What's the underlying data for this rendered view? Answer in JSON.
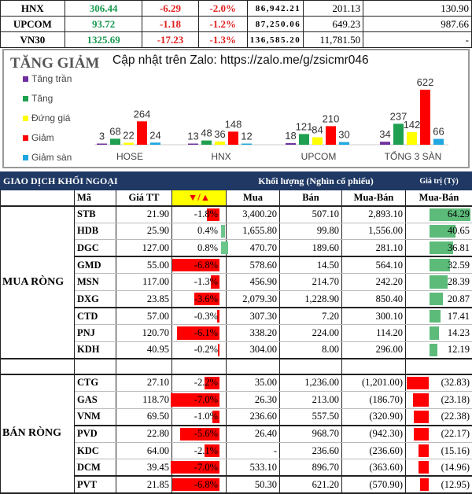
{
  "indices": [
    {
      "name": "HNX",
      "value": "306.44",
      "change": "-6.29",
      "pct": "-2.0%",
      "volume": "86,942.21",
      "col6": "201.13",
      "col7": "130.90"
    },
    {
      "name": "UPCOM",
      "value": "93.72",
      "change": "-1.18",
      "pct": "-1.2%",
      "volume": "87,250.06",
      "col6": "649.23",
      "col7": "987.66"
    },
    {
      "name": "VN30",
      "value": "1325.69",
      "change": "-17.23",
      "pct": "-1.3%",
      "volume": "136,585.20",
      "col6": "11,781.50",
      "col7": "-"
    }
  ],
  "chart_data": {
    "type": "bar",
    "title": "TĂNG GIẢM",
    "subtitle": "Cập nhật trên Zalo: https://zalo.me/g/zsicmr046",
    "categories": [
      "HOSE",
      "HNX",
      "UPCOM",
      "TỔNG 3 SÀN"
    ],
    "series": [
      {
        "name": "Tăng trần",
        "color": "#7030a0",
        "values": [
          3,
          13,
          18,
          34
        ]
      },
      {
        "name": "Tăng",
        "color": "#1fa050",
        "values": [
          68,
          48,
          121,
          237
        ]
      },
      {
        "name": "Đứng giá",
        "color": "#ffff00",
        "values": [
          22,
          36,
          84,
          142
        ]
      },
      {
        "name": "Giảm",
        "color": "#ff0000",
        "values": [
          264,
          148,
          210,
          622
        ]
      },
      {
        "name": "Giảm sàn",
        "color": "#1ea7e0",
        "values": [
          24,
          12,
          30,
          66
        ]
      }
    ],
    "legend": "left",
    "grid": false
  },
  "foreign": {
    "title": "GIAO DỊCH KHỐI NGOẠI",
    "volume_header": "Khối lượng (Nghìn cổ phiếu)",
    "value_header": "Giá trị (Tỷ)",
    "columns": [
      "Mã",
      "Giá TT",
      "▼/▲",
      "Mua",
      "Bán",
      "Mua-Bán",
      "Mua-Bán"
    ],
    "buy_label": "MUA RÒNG",
    "sell_label": "BÁN RÒNG",
    "buy": [
      [
        "STB",
        "21.90",
        "-1.8%",
        "3,400.20",
        "507.10",
        "2,893.10",
        "64.29"
      ],
      [
        "HDB",
        "25.90",
        "0.4%",
        "1,655.80",
        "99.80",
        "1,556.00",
        "40.65"
      ],
      [
        "DGC",
        "127.00",
        "0.8%",
        "470.70",
        "189.60",
        "281.10",
        "36.81"
      ],
      [
        "GMD",
        "55.00",
        "-6.8%",
        "578.60",
        "14.50",
        "564.10",
        "32.59"
      ],
      [
        "MSN",
        "117.00",
        "-1.3%",
        "456.90",
        "214.70",
        "242.20",
        "28.39"
      ],
      [
        "DXG",
        "23.85",
        "-3.6%",
        "2,079.30",
        "1,228.90",
        "850.40",
        "20.87"
      ],
      [
        "CTD",
        "57.00",
        "-0.3%",
        "307.30",
        "7.20",
        "300.10",
        "17.41"
      ],
      [
        "PNJ",
        "120.70",
        "-6.1%",
        "338.20",
        "224.00",
        "114.20",
        "14.23"
      ],
      [
        "KDH",
        "40.95",
        "-0.2%",
        "304.00",
        "8.00",
        "296.00",
        "12.19"
      ]
    ],
    "sell": [
      [
        "CTG",
        "27.10",
        "-2.2%",
        "35.00",
        "1,236.00",
        "(1,201.00)",
        "(32.83)"
      ],
      [
        "GAS",
        "118.70",
        "-7.0%",
        "26.30",
        "213.00",
        "(186.70)",
        "(23.18)"
      ],
      [
        "VNM",
        "69.50",
        "-1.0%",
        "236.60",
        "557.50",
        "(320.90)",
        "(22.38)"
      ],
      [
        "PVD",
        "22.80",
        "-5.6%",
        "26.40",
        "968.70",
        "(942.30)",
        "(22.17)"
      ],
      [
        "KDC",
        "64.00",
        "-2.1%",
        "-",
        "236.60",
        "(236.60)",
        "(15.16)"
      ],
      [
        "DCM",
        "39.45",
        "-7.0%",
        "533.10",
        "896.70",
        "(363.60)",
        "(14.96)"
      ],
      [
        "PVT",
        "21.85",
        "-6.8%",
        "50.30",
        "621.20",
        "(570.90)",
        "(12.95)"
      ]
    ]
  }
}
